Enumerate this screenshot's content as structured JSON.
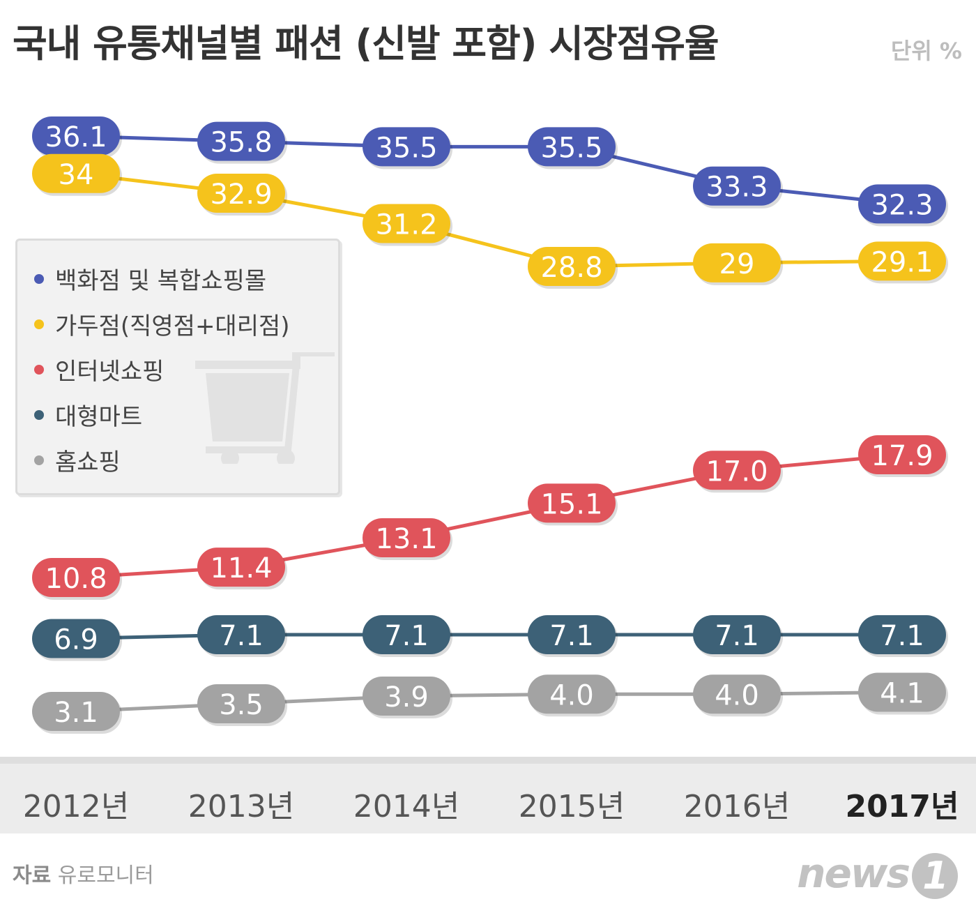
{
  "header": {
    "title": "국내 유통채널별 패션 (신발 포함) 시장점유율",
    "unit": "단위 %"
  },
  "footer": {
    "source_label": "자료",
    "source_name": "유로모니터",
    "logo": "news",
    "logo_mark": "1"
  },
  "chart_data": {
    "type": "line",
    "categories": [
      "2012년",
      "2013년",
      "2014년",
      "2015년",
      "2016년",
      "2017년"
    ],
    "series": [
      {
        "name": "백화점 및 복합쇼핑몰",
        "color": "#4b5bb4",
        "values": [
          36.1,
          35.8,
          35.5,
          35.5,
          33.3,
          32.3
        ],
        "labels": [
          "36.1",
          "35.8",
          "35.5",
          "35.5",
          "33.3",
          "32.3"
        ]
      },
      {
        "name": "가두점(직영점+대리점)",
        "color": "#f5c31c",
        "values": [
          34,
          32.9,
          31.2,
          28.8,
          29,
          29.1
        ],
        "labels": [
          "34",
          "32.9",
          "31.2",
          "28.8",
          "29",
          "29.1"
        ]
      },
      {
        "name": "인터넷쇼핑",
        "color": "#e0545b",
        "values": [
          10.8,
          11.4,
          13.1,
          15.1,
          17.0,
          17.9
        ],
        "labels": [
          "10.8",
          "11.4",
          "13.1",
          "15.1",
          "17.0",
          "17.9"
        ]
      },
      {
        "name": "대형마트",
        "color": "#3d6177",
        "values": [
          6.9,
          7.1,
          7.1,
          7.1,
          7.1,
          7.1
        ],
        "labels": [
          "6.9",
          "7.1",
          "7.1",
          "7.1",
          "7.1",
          "7.1"
        ]
      },
      {
        "name": "홈쇼핑",
        "color": "#a3a3a3",
        "values": [
          3.1,
          3.5,
          3.9,
          4.0,
          4.0,
          4.1
        ],
        "labels": [
          "3.1",
          "3.5",
          "3.9",
          "4.0",
          "4.0",
          "4.1"
        ]
      }
    ],
    "legend_placement": "left",
    "grid": false,
    "highlight_category": "2017년"
  }
}
